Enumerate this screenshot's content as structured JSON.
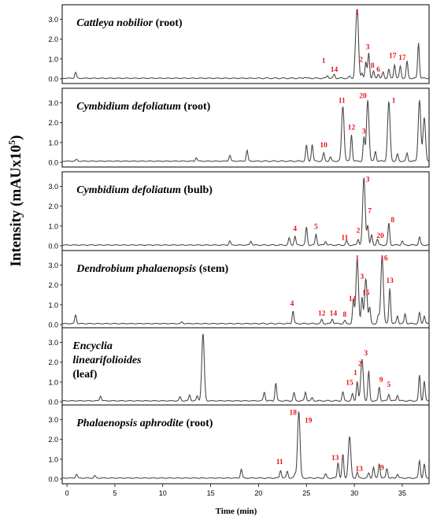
{
  "ylabel": "Intensity (mAUx10",
  "ylabel_sup": "5",
  "ylabel_close": ")",
  "xlabel": "Time (min)",
  "x_ticks": [
    "0",
    "5",
    "10",
    "15",
    "20",
    "25",
    "30",
    "35"
  ],
  "y_ticks": [
    "0.0",
    "1.0",
    "2.0",
    "3.0"
  ],
  "chart_data": [
    {
      "type": "line",
      "title_italic": "Cattleya nobilior",
      "title_rest": "(root)",
      "xlim": [
        -0.5,
        37.8
      ],
      "ylim": [
        0,
        3.5
      ],
      "peaks": [
        [
          0.9,
          0.3
        ],
        [
          24.8,
          0.06
        ],
        [
          27.2,
          0.14
        ],
        [
          27.9,
          0.18
        ],
        [
          29.5,
          0.08
        ],
        [
          30.1,
          0.7
        ],
        [
          30.3,
          3.5
        ],
        [
          30.8,
          0.28
        ],
        [
          31.2,
          0.8
        ],
        [
          31.5,
          1.3
        ],
        [
          32.0,
          0.35
        ],
        [
          32.5,
          0.22
        ],
        [
          33.0,
          0.3
        ],
        [
          33.6,
          0.45
        ],
        [
          34.2,
          0.7
        ],
        [
          34.8,
          0.6
        ],
        [
          35.5,
          0.85
        ],
        [
          36.7,
          1.8
        ]
      ],
      "baseline": 0.03,
      "labels": [
        {
          "text": "1",
          "x": 30.3,
          "y": 3.25
        },
        {
          "text": "3",
          "x": 31.4,
          "y": 1.5
        },
        {
          "text": "2",
          "x": 30.7,
          "y": 0.85
        },
        {
          "text": "8",
          "x": 31.9,
          "y": 0.55
        },
        {
          "text": "6",
          "x": 32.5,
          "y": 0.35
        },
        {
          "text": "1",
          "x": 26.8,
          "y": 0.8
        },
        {
          "text": "14",
          "x": 27.9,
          "y": 0.35
        },
        {
          "text": "17",
          "x": 34.0,
          "y": 1.05
        },
        {
          "text": "17",
          "x": 35.0,
          "y": 0.95
        }
      ]
    },
    {
      "type": "line",
      "title_italic": "Cymbidium defoliatum",
      "title_rest": "(root)",
      "xlim": [
        -0.5,
        37.8
      ],
      "ylim": [
        0,
        3.5
      ],
      "peaks": [
        [
          1.0,
          0.08
        ],
        [
          13.5,
          0.18
        ],
        [
          17.0,
          0.3
        ],
        [
          18.8,
          0.55
        ],
        [
          25.0,
          0.8
        ],
        [
          25.6,
          0.85
        ],
        [
          26.8,
          0.4
        ],
        [
          27.5,
          0.2
        ],
        [
          28.8,
          2.8
        ],
        [
          29.7,
          1.35
        ],
        [
          31.0,
          1.2
        ],
        [
          31.4,
          3.1
        ],
        [
          32.2,
          0.5
        ],
        [
          33.6,
          3.0
        ],
        [
          34.5,
          0.35
        ],
        [
          35.5,
          0.4
        ],
        [
          36.8,
          3.1
        ],
        [
          37.3,
          2.2
        ]
      ],
      "baseline": 0.06,
      "labels": [
        {
          "text": "11",
          "x": 28.7,
          "y": 3.0
        },
        {
          "text": "20",
          "x": 30.9,
          "y": 3.25
        },
        {
          "text": "1",
          "x": 34.1,
          "y": 3.0
        },
        {
          "text": "12",
          "x": 29.7,
          "y": 1.65
        },
        {
          "text": "3",
          "x": 31.0,
          "y": 1.45
        },
        {
          "text": "10",
          "x": 26.8,
          "y": 0.75
        }
      ]
    },
    {
      "type": "line",
      "title_italic": "Cymbidium defoliatum",
      "title_rest": "(bulb)",
      "xlim": [
        -0.5,
        37.8
      ],
      "ylim": [
        0,
        3.5
      ],
      "peaks": [
        [
          17.0,
          0.2
        ],
        [
          19.2,
          0.2
        ],
        [
          23.2,
          0.35
        ],
        [
          23.8,
          0.45
        ],
        [
          25.0,
          0.9
        ],
        [
          26.0,
          0.55
        ],
        [
          27.0,
          0.2
        ],
        [
          29.2,
          0.2
        ],
        [
          30.4,
          0.3
        ],
        [
          31.0,
          3.4
        ],
        [
          31.4,
          1.0
        ],
        [
          31.8,
          0.5
        ],
        [
          32.4,
          0.3
        ],
        [
          33.6,
          1.1
        ],
        [
          35.0,
          0.2
        ],
        [
          36.8,
          0.4
        ]
      ],
      "baseline": 0.04,
      "labels": [
        {
          "text": "3",
          "x": 31.4,
          "y": 3.25
        },
        {
          "text": "7",
          "x": 31.6,
          "y": 1.65
        },
        {
          "text": "8",
          "x": 34.0,
          "y": 1.2
        },
        {
          "text": "4",
          "x": 23.8,
          "y": 0.75
        },
        {
          "text": "5",
          "x": 26.0,
          "y": 0.85
        },
        {
          "text": "2",
          "x": 30.4,
          "y": 0.65
        },
        {
          "text": "20",
          "x": 32.7,
          "y": 0.4
        },
        {
          "text": "11",
          "x": 29.0,
          "y": 0.3
        }
      ]
    },
    {
      "type": "line",
      "title_italic": "Dendrobium phalaenopsis",
      "title_rest": "(stem)",
      "xlim": [
        -0.5,
        37.8
      ],
      "ylim": [
        0,
        3.5
      ],
      "peaks": [
        [
          0.9,
          0.45
        ],
        [
          12.0,
          0.08
        ],
        [
          23.6,
          0.65
        ],
        [
          26.6,
          0.2
        ],
        [
          27.7,
          0.25
        ],
        [
          29.0,
          0.15
        ],
        [
          29.9,
          1.2
        ],
        [
          30.3,
          3.3
        ],
        [
          30.8,
          1.3
        ],
        [
          31.2,
          2.3
        ],
        [
          31.6,
          0.8
        ],
        [
          32.5,
          0.4
        ],
        [
          32.9,
          3.4
        ],
        [
          33.7,
          1.8
        ],
        [
          34.5,
          0.4
        ],
        [
          35.3,
          0.5
        ],
        [
          36.8,
          0.55
        ],
        [
          37.3,
          0.4
        ]
      ],
      "baseline": 0.05,
      "labels": [
        {
          "text": "1",
          "x": 30.3,
          "y": 3.25
        },
        {
          "text": "16",
          "x": 33.1,
          "y": 3.25
        },
        {
          "text": "3",
          "x": 30.8,
          "y": 2.3
        },
        {
          "text": "13",
          "x": 33.7,
          "y": 2.1
        },
        {
          "text": "15",
          "x": 31.2,
          "y": 1.5
        },
        {
          "text": "14",
          "x": 29.8,
          "y": 1.2
        },
        {
          "text": "4",
          "x": 23.5,
          "y": 0.95
        },
        {
          "text": "12",
          "x": 26.6,
          "y": 0.45
        },
        {
          "text": "14",
          "x": 27.8,
          "y": 0.45
        },
        {
          "text": "8",
          "x": 29.0,
          "y": 0.4
        }
      ]
    },
    {
      "type": "line",
      "title_italic": "Encyclia linearifolioides",
      "title_rest": "(leaf)",
      "xlim": [
        -0.5,
        37.8
      ],
      "ylim": [
        0,
        3.5
      ],
      "peaks": [
        [
          3.5,
          0.25
        ],
        [
          11.8,
          0.2
        ],
        [
          12.8,
          0.3
        ],
        [
          13.6,
          0.25
        ],
        [
          14.2,
          3.4
        ],
        [
          20.6,
          0.45
        ],
        [
          21.8,
          0.9
        ],
        [
          23.7,
          0.4
        ],
        [
          24.9,
          0.45
        ],
        [
          25.6,
          0.15
        ],
        [
          28.8,
          0.45
        ],
        [
          29.8,
          0.35
        ],
        [
          30.3,
          1.0
        ],
        [
          30.8,
          2.1
        ],
        [
          31.5,
          1.5
        ],
        [
          32.6,
          0.7
        ],
        [
          33.6,
          0.35
        ],
        [
          34.5,
          0.3
        ],
        [
          36.8,
          1.3
        ],
        [
          37.3,
          1.0
        ]
      ],
      "baseline": 0.05,
      "labels": [
        {
          "text": "3",
          "x": 31.2,
          "y": 2.35
        },
        {
          "text": "2",
          "x": 30.6,
          "y": 1.8
        },
        {
          "text": "1",
          "x": 30.1,
          "y": 1.35
        },
        {
          "text": "15",
          "x": 29.5,
          "y": 0.85
        },
        {
          "text": "9",
          "x": 32.8,
          "y": 1.0
        },
        {
          "text": "5",
          "x": 33.6,
          "y": 0.75
        }
      ]
    },
    {
      "type": "line",
      "title_italic": "Phalaenopsis aphrodite",
      "title_rest": "(root)",
      "xlim": [
        -0.5,
        37.8
      ],
      "ylim": [
        0,
        3.5
      ],
      "peaks": [
        [
          1.0,
          0.2
        ],
        [
          2.9,
          0.12
        ],
        [
          18.2,
          0.45
        ],
        [
          22.3,
          0.4
        ],
        [
          23.0,
          0.35
        ],
        [
          23.8,
          0.2
        ],
        [
          24.2,
          3.4
        ],
        [
          27.0,
          0.2
        ],
        [
          28.3,
          0.8
        ],
        [
          28.8,
          1.2
        ],
        [
          29.5,
          2.1
        ],
        [
          30.3,
          0.3
        ],
        [
          31.5,
          0.25
        ],
        [
          32.0,
          0.55
        ],
        [
          32.6,
          0.75
        ],
        [
          33.4,
          0.5
        ],
        [
          34.5,
          0.2
        ],
        [
          36.8,
          0.9
        ],
        [
          37.3,
          0.7
        ]
      ],
      "baseline": 0.05,
      "labels": [
        {
          "text": "18",
          "x": 23.6,
          "y": 3.25
        },
        {
          "text": "19",
          "x": 25.2,
          "y": 2.85
        },
        {
          "text": "11",
          "x": 22.2,
          "y": 0.75
        },
        {
          "text": "13",
          "x": 28.0,
          "y": 0.95
        },
        {
          "text": "13",
          "x": 30.5,
          "y": 0.4
        },
        {
          "text": "9",
          "x": 32.9,
          "y": 0.45
        }
      ]
    }
  ]
}
